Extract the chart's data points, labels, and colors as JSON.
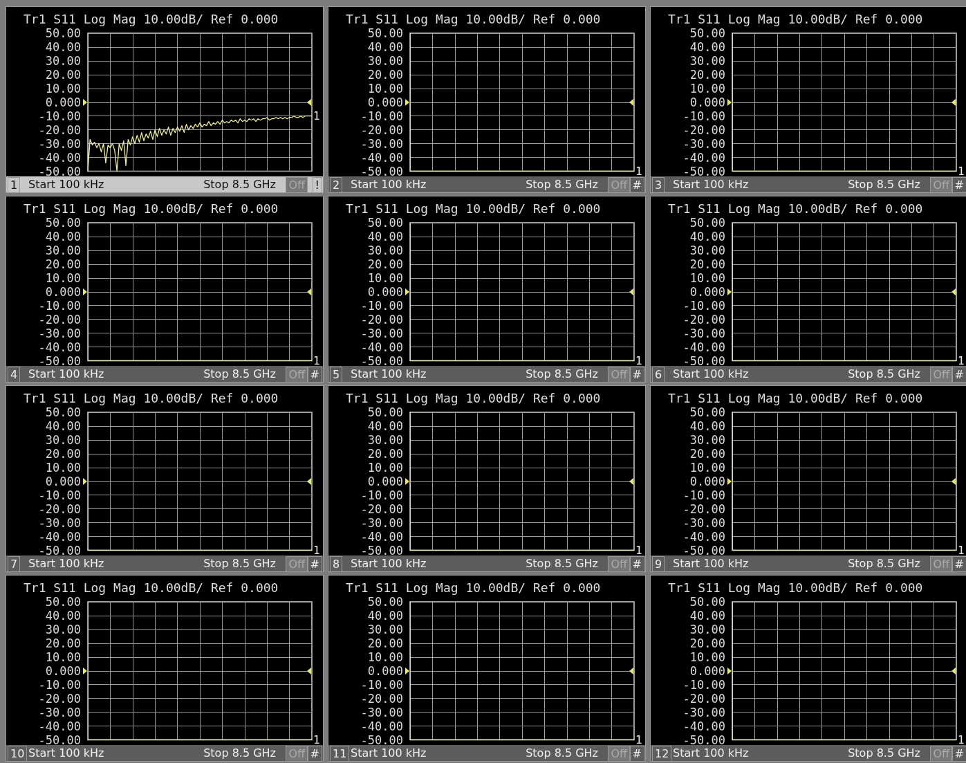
{
  "chart_data": [
    {
      "type": "line",
      "title": "Tr1 S11 Log Mag 10.00dB/ Ref 0.000",
      "categories": [
        null,
        null,
        null,
        null,
        null,
        null,
        null,
        null,
        null,
        null,
        null,
        null,
        null,
        null,
        null,
        null,
        null,
        null,
        null,
        null,
        null,
        null,
        null,
        null,
        null,
        null,
        null,
        null,
        null,
        null,
        null,
        null,
        null,
        null,
        null,
        null,
        null,
        null,
        null,
        null,
        null,
        null,
        null,
        null,
        null,
        null,
        null,
        null,
        null,
        null,
        null,
        null,
        null,
        null,
        null,
        null,
        null,
        null,
        null,
        null,
        null,
        null,
        null,
        null,
        null,
        null,
        null,
        null,
        null,
        null,
        null,
        null,
        null,
        null,
        null,
        null,
        null,
        null,
        null,
        null,
        null,
        null,
        null,
        null,
        null,
        null,
        null,
        null,
        null,
        null,
        null,
        null,
        null,
        null,
        null,
        null,
        null,
        null,
        null,
        null,
        null
      ],
      "series": [
        {
          "color": "#f0eea0",
          "values": [
            -50,
            -27,
            -31,
            -29,
            -33,
            -30,
            -36,
            -30,
            -44,
            -31,
            -33,
            -30,
            -35,
            -50,
            -30,
            -35,
            -28,
            -46,
            -27,
            -31,
            -25,
            -30,
            -24,
            -29,
            -22,
            -28,
            -23,
            -26,
            -21,
            -27,
            -20,
            -25,
            -19,
            -24,
            -20,
            -23,
            -18,
            -24,
            -19,
            -22,
            -18,
            -21,
            -17,
            -22,
            -16,
            -20,
            -17,
            -19,
            -16,
            -18,
            -15,
            -18,
            -16,
            -17,
            -14,
            -17,
            -15,
            -16,
            -14,
            -16,
            -13,
            -15,
            -14,
            -15,
            -13,
            -14,
            -13,
            -15,
            -12,
            -14,
            -13,
            -14,
            -12,
            -13,
            -12,
            -14,
            -12,
            -13,
            -12,
            -12,
            -11,
            -13,
            -12,
            -12,
            -11,
            -12,
            -11,
            -12,
            -11,
            -12,
            -11,
            -11,
            -10,
            -11,
            -11,
            -10,
            -11,
            -10,
            -10,
            -10,
            -10
          ]
        }
      ],
      "ylim": [
        -50,
        50
      ],
      "yticks": [
        {
          "value": 50,
          "label": "50.00"
        },
        {
          "value": 40,
          "label": "40.00"
        },
        {
          "value": 30,
          "label": "30.00"
        },
        {
          "value": 20,
          "label": "20.00"
        },
        {
          "value": 10,
          "label": "10.00"
        },
        {
          "value": 0,
          "label": "0.000"
        },
        {
          "value": -10,
          "label": "-10.00"
        },
        {
          "value": -20,
          "label": "-20.00"
        },
        {
          "value": -30,
          "label": "-30.00"
        },
        {
          "value": -40,
          "label": "-40.00"
        },
        {
          "value": -50,
          "label": "-50.00"
        }
      ],
      "grid": true,
      "ref_lines": [
        {
          "axis": "y",
          "value": 0
        }
      ],
      "annotations": [
        "1",
        "Start 100 kHz",
        "Stop 8.5 GHz",
        "Off",
        "!",
        "1"
      ]
    },
    {
      "type": "line",
      "title": "Tr1 S11 Log Mag 10.00dB/ Ref 0.000",
      "categories": [
        null,
        null,
        null,
        null,
        null,
        null,
        null,
        null,
        null,
        null,
        null
      ],
      "series": [
        {
          "color": "#e8e8b0",
          "values": [
            -50,
            -50,
            -50,
            -50,
            -50,
            -50,
            -50,
            -50,
            -50,
            -50,
            -50
          ]
        }
      ],
      "ylim": [
        -50,
        50
      ],
      "yticks": [
        {
          "value": 50,
          "label": "50.00"
        },
        {
          "value": 40,
          "label": "40.00"
        },
        {
          "value": 30,
          "label": "30.00"
        },
        {
          "value": 20,
          "label": "20.00"
        },
        {
          "value": 10,
          "label": "10.00"
        },
        {
          "value": 0,
          "label": "0.000"
        },
        {
          "value": -10,
          "label": "-10.00"
        },
        {
          "value": -20,
          "label": "-20.00"
        },
        {
          "value": -30,
          "label": "-30.00"
        },
        {
          "value": -40,
          "label": "-40.00"
        },
        {
          "value": -50,
          "label": "-50.00"
        }
      ],
      "grid": true,
      "ref_lines": [
        {
          "axis": "y",
          "value": 0
        }
      ],
      "annotations": [
        "2",
        "Start 100 kHz",
        "Stop 8.5 GHz",
        "Off",
        "#",
        "1"
      ]
    },
    {
      "type": "line",
      "title": "Tr1 S11 Log Mag 10.00dB/ Ref 0.000",
      "categories": [
        null,
        null,
        null,
        null,
        null,
        null,
        null,
        null,
        null,
        null,
        null
      ],
      "series": [
        {
          "color": "#e8e8b0",
          "values": [
            -50,
            -50,
            -50,
            -50,
            -50,
            -50,
            -50,
            -50,
            -50,
            -50,
            -50
          ]
        }
      ],
      "ylim": [
        -50,
        50
      ],
      "yticks": [
        {
          "value": 50,
          "label": "50.00"
        },
        {
          "value": 40,
          "label": "40.00"
        },
        {
          "value": 30,
          "label": "30.00"
        },
        {
          "value": 20,
          "label": "20.00"
        },
        {
          "value": 10,
          "label": "10.00"
        },
        {
          "value": 0,
          "label": "0.000"
        },
        {
          "value": -10,
          "label": "-10.00"
        },
        {
          "value": -20,
          "label": "-20.00"
        },
        {
          "value": -30,
          "label": "-30.00"
        },
        {
          "value": -40,
          "label": "-40.00"
        },
        {
          "value": -50,
          "label": "-50.00"
        }
      ],
      "grid": true,
      "ref_lines": [
        {
          "axis": "y",
          "value": 0
        }
      ],
      "annotations": [
        "3",
        "Start 100 kHz",
        "Stop 8.5 GHz",
        "Off",
        "#",
        "1"
      ]
    },
    {
      "type": "line",
      "title": "Tr1 S11 Log Mag 10.00dB/ Ref 0.000",
      "categories": [
        null,
        null,
        null,
        null,
        null,
        null,
        null,
        null,
        null,
        null,
        null
      ],
      "series": [
        {
          "color": "#e8e8b0",
          "values": [
            -50,
            -50,
            -50,
            -50,
            -50,
            -50,
            -50,
            -50,
            -50,
            -50,
            -50
          ]
        }
      ],
      "ylim": [
        -50,
        50
      ],
      "yticks": [
        {
          "value": 50,
          "label": "50.00"
        },
        {
          "value": 40,
          "label": "40.00"
        },
        {
          "value": 30,
          "label": "30.00"
        },
        {
          "value": 20,
          "label": "20.00"
        },
        {
          "value": 10,
          "label": "10.00"
        },
        {
          "value": 0,
          "label": "0.000"
        },
        {
          "value": -10,
          "label": "-10.00"
        },
        {
          "value": -20,
          "label": "-20.00"
        },
        {
          "value": -30,
          "label": "-30.00"
        },
        {
          "value": -40,
          "label": "-40.00"
        },
        {
          "value": -50,
          "label": "-50.00"
        }
      ],
      "grid": true,
      "ref_lines": [
        {
          "axis": "y",
          "value": 0
        }
      ],
      "annotations": [
        "4",
        "Start 100 kHz",
        "Stop 8.5 GHz",
        "Off",
        "#",
        "1"
      ]
    },
    {
      "type": "line",
      "title": "Tr1 S11 Log Mag 10.00dB/ Ref 0.000",
      "categories": [
        null,
        null,
        null,
        null,
        null,
        null,
        null,
        null,
        null,
        null,
        null
      ],
      "series": [
        {
          "color": "#e8e8b0",
          "values": [
            -50,
            -50,
            -50,
            -50,
            -50,
            -50,
            -50,
            -50,
            -50,
            -50,
            -50
          ]
        }
      ],
      "ylim": [
        -50,
        50
      ],
      "yticks": [
        {
          "value": 50,
          "label": "50.00"
        },
        {
          "value": 40,
          "label": "40.00"
        },
        {
          "value": 30,
          "label": "30.00"
        },
        {
          "value": 20,
          "label": "20.00"
        },
        {
          "value": 10,
          "label": "10.00"
        },
        {
          "value": 0,
          "label": "0.000"
        },
        {
          "value": -10,
          "label": "-10.00"
        },
        {
          "value": -20,
          "label": "-20.00"
        },
        {
          "value": -30,
          "label": "-30.00"
        },
        {
          "value": -40,
          "label": "-40.00"
        },
        {
          "value": -50,
          "label": "-50.00"
        }
      ],
      "grid": true,
      "ref_lines": [
        {
          "axis": "y",
          "value": 0
        }
      ],
      "annotations": [
        "5",
        "Start 100 kHz",
        "Stop 8.5 GHz",
        "Off",
        "#",
        "1"
      ]
    },
    {
      "type": "line",
      "title": "Tr1 S11 Log Mag 10.00dB/ Ref 0.000",
      "categories": [
        null,
        null,
        null,
        null,
        null,
        null,
        null,
        null,
        null,
        null,
        null
      ],
      "series": [
        {
          "color": "#e8e8b0",
          "values": [
            -50,
            -50,
            -50,
            -50,
            -50,
            -50,
            -50,
            -50,
            -50,
            -50,
            -50
          ]
        }
      ],
      "ylim": [
        -50,
        50
      ],
      "yticks": [
        {
          "value": 50,
          "label": "50.00"
        },
        {
          "value": 40,
          "label": "40.00"
        },
        {
          "value": 30,
          "label": "30.00"
        },
        {
          "value": 20,
          "label": "20.00"
        },
        {
          "value": 10,
          "label": "10.00"
        },
        {
          "value": 0,
          "label": "0.000"
        },
        {
          "value": -10,
          "label": "-10.00"
        },
        {
          "value": -20,
          "label": "-20.00"
        },
        {
          "value": -30,
          "label": "-30.00"
        },
        {
          "value": -40,
          "label": "-40.00"
        },
        {
          "value": -50,
          "label": "-50.00"
        }
      ],
      "grid": true,
      "ref_lines": [
        {
          "axis": "y",
          "value": 0
        }
      ],
      "annotations": [
        "6",
        "Start 100 kHz",
        "Stop 8.5 GHz",
        "Off",
        "#",
        "1"
      ]
    },
    {
      "type": "line",
      "title": "Tr1 S11 Log Mag 10.00dB/ Ref 0.000",
      "categories": [
        null,
        null,
        null,
        null,
        null,
        null,
        null,
        null,
        null,
        null,
        null
      ],
      "series": [
        {
          "color": "#e8e8b0",
          "values": [
            -50,
            -50,
            -50,
            -50,
            -50,
            -50,
            -50,
            -50,
            -50,
            -50,
            -50
          ]
        }
      ],
      "ylim": [
        -50,
        50
      ],
      "yticks": [
        {
          "value": 50,
          "label": "50.00"
        },
        {
          "value": 40,
          "label": "40.00"
        },
        {
          "value": 30,
          "label": "30.00"
        },
        {
          "value": 20,
          "label": "20.00"
        },
        {
          "value": 10,
          "label": "10.00"
        },
        {
          "value": 0,
          "label": "0.000"
        },
        {
          "value": -10,
          "label": "-10.00"
        },
        {
          "value": -20,
          "label": "-20.00"
        },
        {
          "value": -30,
          "label": "-30.00"
        },
        {
          "value": -40,
          "label": "-40.00"
        },
        {
          "value": -50,
          "label": "-50.00"
        }
      ],
      "grid": true,
      "ref_lines": [
        {
          "axis": "y",
          "value": 0
        }
      ],
      "annotations": [
        "7",
        "Start 100 kHz",
        "Stop 8.5 GHz",
        "Off",
        "#",
        "1"
      ]
    },
    {
      "type": "line",
      "title": "Tr1 S11 Log Mag 10.00dB/ Ref 0.000",
      "categories": [
        null,
        null,
        null,
        null,
        null,
        null,
        null,
        null,
        null,
        null,
        null
      ],
      "series": [
        {
          "color": "#e8e8b0",
          "values": [
            -50,
            -50,
            -50,
            -50,
            -50,
            -50,
            -50,
            -50,
            -50,
            -50,
            -50
          ]
        }
      ],
      "ylim": [
        -50,
        50
      ],
      "yticks": [
        {
          "value": 50,
          "label": "50.00"
        },
        {
          "value": 40,
          "label": "40.00"
        },
        {
          "value": 30,
          "label": "30.00"
        },
        {
          "value": 20,
          "label": "20.00"
        },
        {
          "value": 10,
          "label": "10.00"
        },
        {
          "value": 0,
          "label": "0.000"
        },
        {
          "value": -10,
          "label": "-10.00"
        },
        {
          "value": -20,
          "label": "-20.00"
        },
        {
          "value": -30,
          "label": "-30.00"
        },
        {
          "value": -40,
          "label": "-40.00"
        },
        {
          "value": -50,
          "label": "-50.00"
        }
      ],
      "grid": true,
      "ref_lines": [
        {
          "axis": "y",
          "value": 0
        }
      ],
      "annotations": [
        "8",
        "Start 100 kHz",
        "Stop 8.5 GHz",
        "Off",
        "#",
        "1"
      ]
    },
    {
      "type": "line",
      "title": "Tr1 S11 Log Mag 10.00dB/ Ref 0.000",
      "categories": [
        null,
        null,
        null,
        null,
        null,
        null,
        null,
        null,
        null,
        null,
        null
      ],
      "series": [
        {
          "color": "#e8e8b0",
          "values": [
            -50,
            -50,
            -50,
            -50,
            -50,
            -50,
            -50,
            -50,
            -50,
            -50,
            -50
          ]
        }
      ],
      "ylim": [
        -50,
        50
      ],
      "yticks": [
        {
          "value": 50,
          "label": "50.00"
        },
        {
          "value": 40,
          "label": "40.00"
        },
        {
          "value": 30,
          "label": "30.00"
        },
        {
          "value": 20,
          "label": "20.00"
        },
        {
          "value": 10,
          "label": "10.00"
        },
        {
          "value": 0,
          "label": "0.000"
        },
        {
          "value": -10,
          "label": "-10.00"
        },
        {
          "value": -20,
          "label": "-20.00"
        },
        {
          "value": -30,
          "label": "-30.00"
        },
        {
          "value": -40,
          "label": "-40.00"
        },
        {
          "value": -50,
          "label": "-50.00"
        }
      ],
      "grid": true,
      "ref_lines": [
        {
          "axis": "y",
          "value": 0
        }
      ],
      "annotations": [
        "9",
        "Start 100 kHz",
        "Stop 8.5 GHz",
        "Off",
        "#",
        "1"
      ]
    },
    {
      "type": "line",
      "title": "Tr1 S11 Log Mag 10.00dB/ Ref 0.000",
      "categories": [
        null,
        null,
        null,
        null,
        null,
        null,
        null,
        null,
        null,
        null,
        null
      ],
      "series": [
        {
          "color": "#e8e8b0",
          "values": [
            -50,
            -50,
            -50,
            -50,
            -50,
            -50,
            -50,
            -50,
            -50,
            -50,
            -50
          ]
        }
      ],
      "ylim": [
        -50,
        50
      ],
      "yticks": [
        {
          "value": 50,
          "label": "50.00"
        },
        {
          "value": 40,
          "label": "40.00"
        },
        {
          "value": 30,
          "label": "30.00"
        },
        {
          "value": 20,
          "label": "20.00"
        },
        {
          "value": 10,
          "label": "10.00"
        },
        {
          "value": 0,
          "label": "0.000"
        },
        {
          "value": -10,
          "label": "-10.00"
        },
        {
          "value": -20,
          "label": "-20.00"
        },
        {
          "value": -30,
          "label": "-30.00"
        },
        {
          "value": -40,
          "label": "-40.00"
        },
        {
          "value": -50,
          "label": "-50.00"
        }
      ],
      "grid": true,
      "ref_lines": [
        {
          "axis": "y",
          "value": 0
        }
      ],
      "annotations": [
        "10",
        "Start 100 kHz",
        "Stop 8.5 GHz",
        "Off",
        "#",
        "1"
      ]
    },
    {
      "type": "line",
      "title": "Tr1 S11 Log Mag 10.00dB/ Ref 0.000",
      "categories": [
        null,
        null,
        null,
        null,
        null,
        null,
        null,
        null,
        null,
        null,
        null
      ],
      "series": [
        {
          "color": "#e8e8b0",
          "values": [
            -50,
            -50,
            -50,
            -50,
            -50,
            -50,
            -50,
            -50,
            -50,
            -50,
            -50
          ]
        }
      ],
      "ylim": [
        -50,
        50
      ],
      "yticks": [
        {
          "value": 50,
          "label": "50.00"
        },
        {
          "value": 40,
          "label": "40.00"
        },
        {
          "value": 30,
          "label": "30.00"
        },
        {
          "value": 20,
          "label": "20.00"
        },
        {
          "value": 10,
          "label": "10.00"
        },
        {
          "value": 0,
          "label": "0.000"
        },
        {
          "value": -10,
          "label": "-10.00"
        },
        {
          "value": -20,
          "label": "-20.00"
        },
        {
          "value": -30,
          "label": "-30.00"
        },
        {
          "value": -40,
          "label": "-40.00"
        },
        {
          "value": -50,
          "label": "-50.00"
        }
      ],
      "grid": true,
      "ref_lines": [
        {
          "axis": "y",
          "value": 0
        }
      ],
      "annotations": [
        "11",
        "Start 100 kHz",
        "Stop 8.5 GHz",
        "Off",
        "#",
        "1"
      ]
    },
    {
      "type": "line",
      "title": "Tr1 S11 Log Mag 10.00dB/ Ref 0.000",
      "categories": [
        null,
        null,
        null,
        null,
        null,
        null,
        null,
        null,
        null,
        null,
        null
      ],
      "series": [
        {
          "color": "#e8e8b0",
          "values": [
            -50,
            -50,
            -50,
            -50,
            -50,
            -50,
            -50,
            -50,
            -50,
            -50,
            -50
          ]
        }
      ],
      "ylim": [
        -50,
        50
      ],
      "yticks": [
        {
          "value": 50,
          "label": "50.00"
        },
        {
          "value": 40,
          "label": "40.00"
        },
        {
          "value": 30,
          "label": "30.00"
        },
        {
          "value": 20,
          "label": "20.00"
        },
        {
          "value": 10,
          "label": "10.00"
        },
        {
          "value": 0,
          "label": "0.000"
        },
        {
          "value": -10,
          "label": "-10.00"
        },
        {
          "value": -20,
          "label": "-20.00"
        },
        {
          "value": -30,
          "label": "-30.00"
        },
        {
          "value": -40,
          "label": "-40.00"
        },
        {
          "value": -50,
          "label": "-50.00"
        }
      ],
      "grid": true,
      "ref_lines": [
        {
          "axis": "y",
          "value": 0
        }
      ],
      "annotations": [
        "12",
        "Start 100 kHz",
        "Stop 8.5 GHz",
        "Off",
        "#",
        "1"
      ]
    }
  ]
}
